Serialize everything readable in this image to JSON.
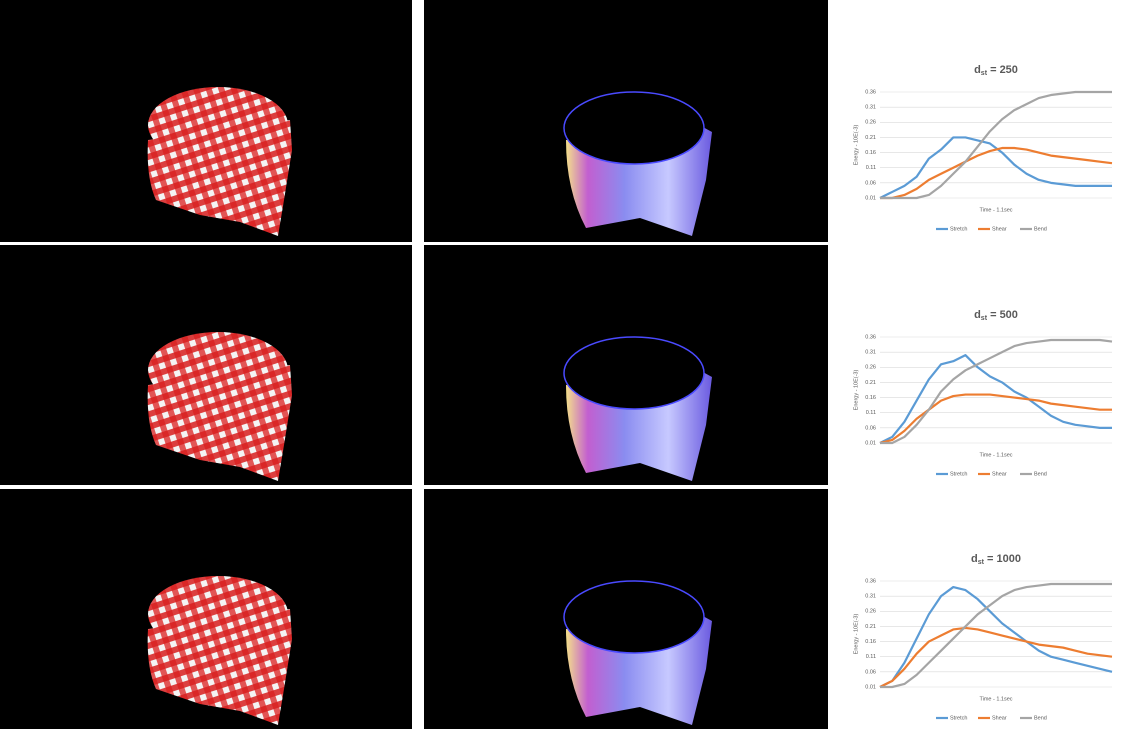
{
  "chart_data": [
    {
      "type": "line",
      "title": {
        "main": "d",
        "sub": "st",
        "rest": " = 250"
      },
      "x_label": "Time - 1.1sec",
      "y_label": "Energy - 10E(-3)",
      "categories": [
        null,
        null,
        null,
        null,
        null,
        null,
        null,
        null,
        null,
        null,
        null,
        null,
        null,
        null,
        null,
        null,
        null,
        null,
        null,
        null
      ],
      "ylim": [
        0.01,
        0.36
      ],
      "yticks": [
        0.01,
        0.06,
        0.11,
        0.16,
        0.21,
        0.26,
        0.31,
        0.36
      ],
      "grid": true,
      "legend": "bottom",
      "series": [
        {
          "name": "Stretch",
          "color": "#5b9bd5",
          "values": [
            0.01,
            0.03,
            0.05,
            0.08,
            0.14,
            0.17,
            0.21,
            0.21,
            0.2,
            0.19,
            0.16,
            0.12,
            0.09,
            0.07,
            0.06,
            0.055,
            0.05,
            0.05,
            0.05,
            0.05
          ]
        },
        {
          "name": "Shear",
          "color": "#ed7d31",
          "values": [
            0.01,
            0.01,
            0.02,
            0.04,
            0.07,
            0.09,
            0.11,
            0.13,
            0.15,
            0.165,
            0.175,
            0.175,
            0.17,
            0.16,
            0.15,
            0.145,
            0.14,
            0.135,
            0.13,
            0.125
          ]
        },
        {
          "name": "Bend",
          "color": "#a5a5a5",
          "values": [
            0.01,
            0.01,
            0.01,
            0.01,
            0.02,
            0.05,
            0.09,
            0.13,
            0.18,
            0.23,
            0.27,
            0.3,
            0.32,
            0.34,
            0.35,
            0.355,
            0.36,
            0.36,
            0.36,
            0.36
          ]
        }
      ]
    },
    {
      "type": "line",
      "title": {
        "main": "d",
        "sub": "st",
        "rest": " = 500"
      },
      "x_label": "Time - 1.1sec",
      "y_label": "Energy - 10E(-3)",
      "categories": [
        null,
        null,
        null,
        null,
        null,
        null,
        null,
        null,
        null,
        null,
        null,
        null,
        null,
        null,
        null,
        null,
        null,
        null,
        null,
        null
      ],
      "ylim": [
        0.01,
        0.36
      ],
      "yticks": [
        0.01,
        0.06,
        0.11,
        0.16,
        0.21,
        0.26,
        0.31,
        0.36
      ],
      "grid": true,
      "legend": "bottom",
      "series": [
        {
          "name": "Stretch",
          "color": "#5b9bd5",
          "values": [
            0.01,
            0.03,
            0.08,
            0.15,
            0.22,
            0.27,
            0.28,
            0.3,
            0.26,
            0.23,
            0.21,
            0.18,
            0.16,
            0.13,
            0.1,
            0.08,
            0.07,
            0.065,
            0.06,
            0.06
          ]
        },
        {
          "name": "Shear",
          "color": "#ed7d31",
          "values": [
            0.01,
            0.02,
            0.05,
            0.09,
            0.12,
            0.15,
            0.165,
            0.17,
            0.17,
            0.17,
            0.165,
            0.16,
            0.155,
            0.15,
            0.14,
            0.135,
            0.13,
            0.125,
            0.12,
            0.12
          ]
        },
        {
          "name": "Bend",
          "color": "#a5a5a5",
          "values": [
            0.01,
            0.01,
            0.03,
            0.07,
            0.12,
            0.18,
            0.22,
            0.25,
            0.27,
            0.29,
            0.31,
            0.33,
            0.34,
            0.345,
            0.35,
            0.35,
            0.35,
            0.35,
            0.35,
            0.345
          ]
        }
      ]
    },
    {
      "type": "line",
      "title": {
        "main": "d",
        "sub": "st",
        "rest": " = 1000"
      },
      "x_label": "Time - 1.1sec",
      "y_label": "Energy - 10E(-3)",
      "categories": [
        null,
        null,
        null,
        null,
        null,
        null,
        null,
        null,
        null,
        null,
        null,
        null,
        null,
        null,
        null,
        null,
        null,
        null,
        null,
        null
      ],
      "ylim": [
        0.01,
        0.36
      ],
      "yticks": [
        0.01,
        0.06,
        0.11,
        0.16,
        0.21,
        0.26,
        0.31,
        0.36
      ],
      "grid": true,
      "legend": "bottom",
      "series": [
        {
          "name": "Stretch",
          "color": "#5b9bd5",
          "values": [
            0.01,
            0.03,
            0.09,
            0.17,
            0.25,
            0.31,
            0.34,
            0.33,
            0.3,
            0.26,
            0.22,
            0.19,
            0.16,
            0.13,
            0.11,
            0.1,
            0.09,
            0.08,
            0.07,
            0.06
          ]
        },
        {
          "name": "Shear",
          "color": "#ed7d31",
          "values": [
            0.01,
            0.03,
            0.07,
            0.12,
            0.16,
            0.18,
            0.2,
            0.205,
            0.2,
            0.19,
            0.18,
            0.17,
            0.16,
            0.15,
            0.145,
            0.14,
            0.13,
            0.12,
            0.115,
            0.11
          ]
        },
        {
          "name": "Bend",
          "color": "#a5a5a5",
          "values": [
            0.01,
            0.01,
            0.02,
            0.05,
            0.09,
            0.13,
            0.17,
            0.21,
            0.25,
            0.28,
            0.31,
            0.33,
            0.34,
            0.345,
            0.35,
            0.35,
            0.35,
            0.35,
            0.35,
            0.35
          ]
        }
      ]
    }
  ]
}
